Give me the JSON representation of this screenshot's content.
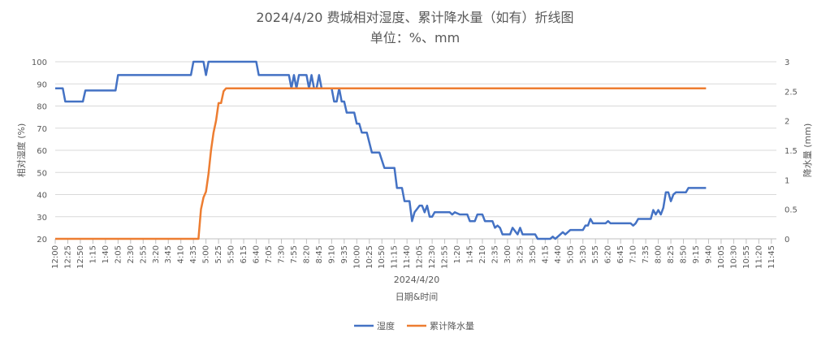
{
  "chart_data": {
    "type": "line",
    "title": "2024/4/20 费城相对湿度、累计降水量（如有）折线图",
    "subtitle": "单位：%、mm",
    "xlabel_top": "2024/4/20",
    "xlabel": "日期&时间",
    "ylabel_left": "相对湿度 (%)",
    "ylabel_right": "降水量 (mm)",
    "ylim_left": [
      20,
      100
    ],
    "ylim_right": [
      0,
      3
    ],
    "yticks_left": [
      20,
      30,
      40,
      50,
      60,
      70,
      80,
      90,
      100
    ],
    "yticks_right": [
      0,
      0.5,
      1,
      1.5,
      2,
      2.5,
      3
    ],
    "grid": true,
    "legend_position": "bottom",
    "x_tick_labels": [
      "12:00",
      "12:25",
      "12:50",
      "1:15",
      "1:40",
      "2:05",
      "2:30",
      "2:55",
      "3:20",
      "3:45",
      "4:10",
      "4:35",
      "5:00",
      "5:25",
      "5:50",
      "6:15",
      "6:40",
      "7:05",
      "7:30",
      "7:55",
      "8:20",
      "8:45",
      "9:10",
      "9:35",
      "10:00",
      "10:25",
      "10:50",
      "11:15",
      "11:40",
      "12:05",
      "12:30",
      "12:55",
      "1:20",
      "1:45",
      "2:10",
      "2:35",
      "3:00",
      "3:25",
      "3:50",
      "4:15",
      "4:40",
      "5:05",
      "5:30",
      "5:55",
      "6:20",
      "6:45",
      "7:10",
      "7:35",
      "8:00",
      "8:25",
      "8:50",
      "9:15",
      "9:40",
      "10:05",
      "10:30",
      "10:55",
      "11:20",
      "11:45"
    ],
    "x_interval_minutes": 5,
    "x_count": 288,
    "series": [
      {
        "name": "湿度",
        "color": "#4472C4",
        "axis": "left",
        "breakpoints": [
          [
            0,
            88
          ],
          [
            3,
            88
          ],
          [
            4,
            82
          ],
          [
            11,
            82
          ],
          [
            12,
            87
          ],
          [
            24,
            87
          ],
          [
            25,
            94
          ],
          [
            54,
            94
          ],
          [
            55,
            100
          ],
          [
            59,
            100
          ],
          [
            60,
            94
          ],
          [
            61,
            100
          ],
          [
            80,
            100
          ],
          [
            81,
            94
          ],
          [
            91,
            94
          ],
          [
            93,
            94
          ],
          [
            94,
            88
          ],
          [
            95,
            94
          ],
          [
            96,
            88
          ],
          [
            97,
            94
          ],
          [
            100,
            94
          ],
          [
            101,
            88
          ],
          [
            102,
            94
          ],
          [
            103,
            88
          ],
          [
            104,
            88
          ],
          [
            105,
            94
          ],
          [
            106,
            88
          ],
          [
            107,
            88
          ],
          [
            108,
            88
          ],
          [
            110,
            88
          ],
          [
            111,
            82
          ],
          [
            112,
            82
          ],
          [
            113,
            88
          ],
          [
            114,
            82
          ],
          [
            115,
            82
          ],
          [
            116,
            77
          ],
          [
            119,
            77
          ],
          [
            120,
            72
          ],
          [
            121,
            72
          ],
          [
            122,
            68
          ],
          [
            124,
            68
          ],
          [
            126,
            59
          ],
          [
            127,
            59
          ],
          [
            128,
            59
          ],
          [
            129,
            59
          ],
          [
            131,
            52
          ],
          [
            133,
            52
          ],
          [
            135,
            52
          ],
          [
            136,
            43
          ],
          [
            138,
            43
          ],
          [
            139,
            37
          ],
          [
            141,
            37
          ],
          [
            142,
            28
          ],
          [
            143,
            32
          ],
          [
            145,
            35
          ],
          [
            146,
            35
          ],
          [
            147,
            32
          ],
          [
            148,
            35
          ],
          [
            149,
            30
          ],
          [
            150,
            30
          ],
          [
            151,
            32
          ],
          [
            155,
            32
          ],
          [
            157,
            32
          ],
          [
            158,
            31
          ],
          [
            159,
            32
          ],
          [
            161,
            31
          ],
          [
            162,
            31
          ],
          [
            164,
            31
          ],
          [
            165,
            28
          ],
          [
            166,
            28
          ],
          [
            167,
            28
          ],
          [
            168,
            31
          ],
          [
            170,
            31
          ],
          [
            171,
            28
          ],
          [
            174,
            28
          ],
          [
            175,
            25
          ],
          [
            176,
            26
          ],
          [
            177,
            25
          ],
          [
            178,
            22
          ],
          [
            181,
            22
          ],
          [
            182,
            25
          ],
          [
            184,
            22
          ],
          [
            185,
            25
          ],
          [
            186,
            22
          ],
          [
            191,
            22
          ],
          [
            192,
            20
          ],
          [
            196,
            20
          ],
          [
            197,
            20
          ],
          [
            198,
            21
          ],
          [
            199,
            20
          ],
          [
            200,
            21
          ],
          [
            201,
            22
          ],
          [
            202,
            23
          ],
          [
            203,
            22
          ],
          [
            204,
            23
          ],
          [
            205,
            24
          ],
          [
            210,
            24
          ],
          [
            211,
            26
          ],
          [
            212,
            26
          ],
          [
            213,
            29
          ],
          [
            214,
            27
          ],
          [
            218,
            27
          ],
          [
            219,
            27
          ],
          [
            220,
            28
          ],
          [
            221,
            27
          ],
          [
            222,
            27
          ],
          [
            229,
            27
          ],
          [
            230,
            26
          ],
          [
            231,
            27
          ],
          [
            232,
            29
          ],
          [
            237,
            29
          ],
          [
            238,
            33
          ],
          [
            239,
            31
          ],
          [
            240,
            33
          ],
          [
            241,
            31
          ],
          [
            242,
            34
          ],
          [
            243,
            41
          ],
          [
            244,
            41
          ],
          [
            245,
            37
          ],
          [
            246,
            40
          ],
          [
            247,
            41
          ],
          [
            251,
            41
          ],
          [
            252,
            43
          ],
          [
            259,
            43
          ]
        ]
      },
      {
        "name": "累计降水量",
        "color": "#ED7D31",
        "axis": "right",
        "breakpoints": [
          [
            0,
            0
          ],
          [
            57,
            0
          ],
          [
            58,
            0.5
          ],
          [
            59,
            0.7
          ],
          [
            60,
            0.8
          ],
          [
            61,
            1.1
          ],
          [
            62,
            1.5
          ],
          [
            63,
            1.8
          ],
          [
            64,
            2.0
          ],
          [
            65,
            2.3
          ],
          [
            66,
            2.3
          ],
          [
            67,
            2.5
          ],
          [
            68,
            2.55
          ],
          [
            259,
            2.55
          ]
        ]
      }
    ]
  }
}
